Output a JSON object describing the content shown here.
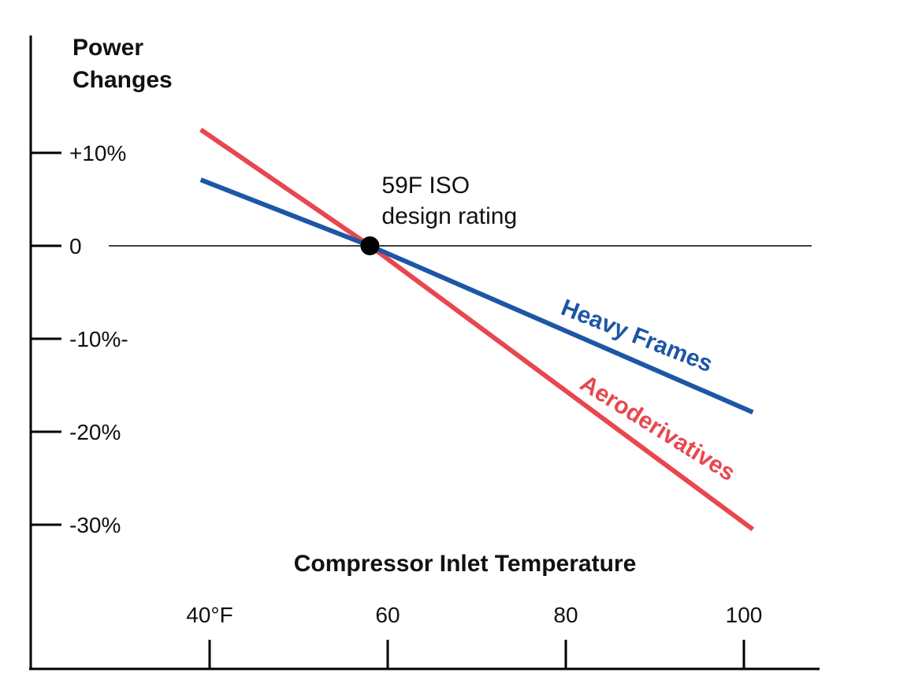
{
  "chart_data": {
    "type": "line",
    "ylabel_line1": "Power",
    "ylabel_line2": "Changes",
    "xlabel": "Compressor Inlet Temperature",
    "x_ticks": [
      {
        "value": 40,
        "label": "40°F"
      },
      {
        "value": 60,
        "label": "60"
      },
      {
        "value": 80,
        "label": "80"
      },
      {
        "value": 100,
        "label": "100"
      }
    ],
    "y_ticks": [
      {
        "value": 10,
        "label": "+10%"
      },
      {
        "value": 0,
        "label": "0"
      },
      {
        "value": -10,
        "label": "-10%-"
      },
      {
        "value": -20,
        "label": "-20%"
      },
      {
        "value": -30,
        "label": "-30%"
      }
    ],
    "series": [
      {
        "name": "Heavy Frames",
        "color": "#1d56a6",
        "x": [
          39,
          58,
          101
        ],
        "y": [
          7.1,
          0,
          -17.9
        ]
      },
      {
        "name": "Aeroderivatives",
        "color": "#e8474f",
        "x": [
          39,
          58,
          101
        ],
        "y": [
          12.5,
          0,
          -30.5
        ]
      }
    ],
    "annotation": {
      "line1": "59F ISO",
      "line2": "design rating",
      "x": 58,
      "y": 0
    }
  }
}
